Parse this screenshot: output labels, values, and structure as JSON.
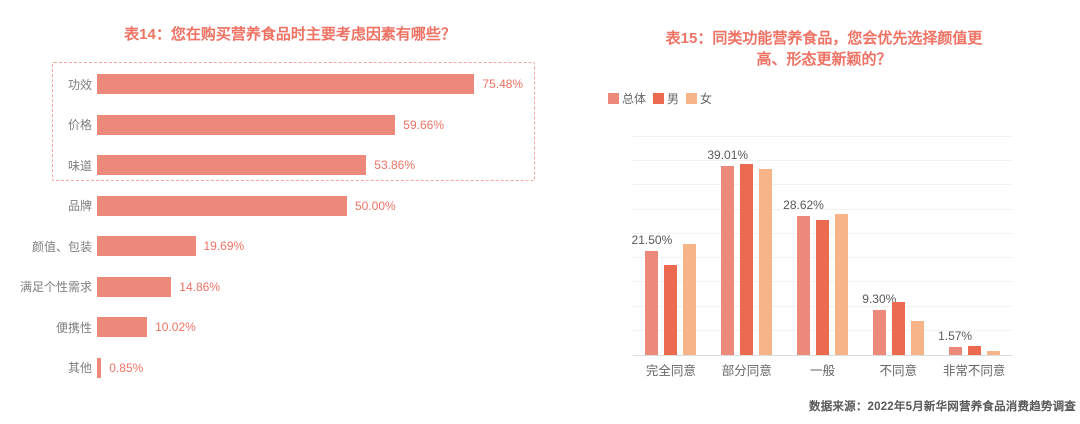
{
  "footer": {
    "source": "数据来源：2022年5月新华网营养食品消费趋势调查"
  },
  "colors": {
    "accent_red": "#EE7365",
    "bar_salmon": "#EC897B",
    "male_orange_red": "#EC6A50",
    "female_peach": "#F8B489",
    "dashed_box": "#F4A79D",
    "label_gray": "#7F7F7F",
    "data_label_gray": "#595959"
  },
  "chart_data": [
    {
      "type": "bar",
      "orientation": "horizontal",
      "title": "表14：您在购买营养食品时主要考虑因素有哪些？",
      "categories": [
        "功效",
        "价格",
        "味道",
        "品牌",
        "颜值、包装",
        "满足个性需求",
        "便携性",
        "其他"
      ],
      "values": [
        75.48,
        59.66,
        53.86,
        50.0,
        19.69,
        14.86,
        10.02,
        0.85
      ],
      "value_labels": [
        "75.48%",
        "59.66%",
        "53.86%",
        "50.00%",
        "19.69%",
        "14.86%",
        "10.02%",
        "0.85%"
      ],
      "xlim": [
        0,
        80
      ],
      "grid": false,
      "bar_color": "#EC897B",
      "value_label_color": "#EE7365",
      "highlight_box": {
        "first_n_rows": 3,
        "style": "dashed",
        "color": "#F4A79D"
      }
    },
    {
      "type": "bar",
      "orientation": "vertical-grouped",
      "title": "表15：同类功能营养食品，您会优先选择颜值更高、形态更新颖的？",
      "title_lines": [
        "表15：同类功能营养食品，您会优先选择颜值更",
        "高、形态更新颖的？"
      ],
      "categories": [
        "完全同意",
        "部分同意",
        "一般",
        "不同意",
        "非常不同意"
      ],
      "series": [
        {
          "name": "总体",
          "color": "#EC897B",
          "values": [
            21.5,
            39.01,
            28.62,
            9.3,
            1.57
          ]
        },
        {
          "name": "男",
          "color": "#EC6A50",
          "values": [
            18.6,
            39.4,
            27.9,
            11.0,
            1.9
          ]
        },
        {
          "name": "女",
          "color": "#F8B489",
          "values": [
            22.9,
            38.5,
            29.2,
            7.0,
            0.8
          ]
        }
      ],
      "series_note": "只有总体数值带标签；男/女数值按柱高估算",
      "data_labels": [
        "21.50%",
        "39.01%",
        "28.62%",
        "9.30%",
        "1.57%"
      ],
      "data_labels_series": "总体",
      "ylim": [
        0,
        45
      ],
      "grid_step": 5,
      "grid": true,
      "legend_position": "top-left"
    }
  ]
}
